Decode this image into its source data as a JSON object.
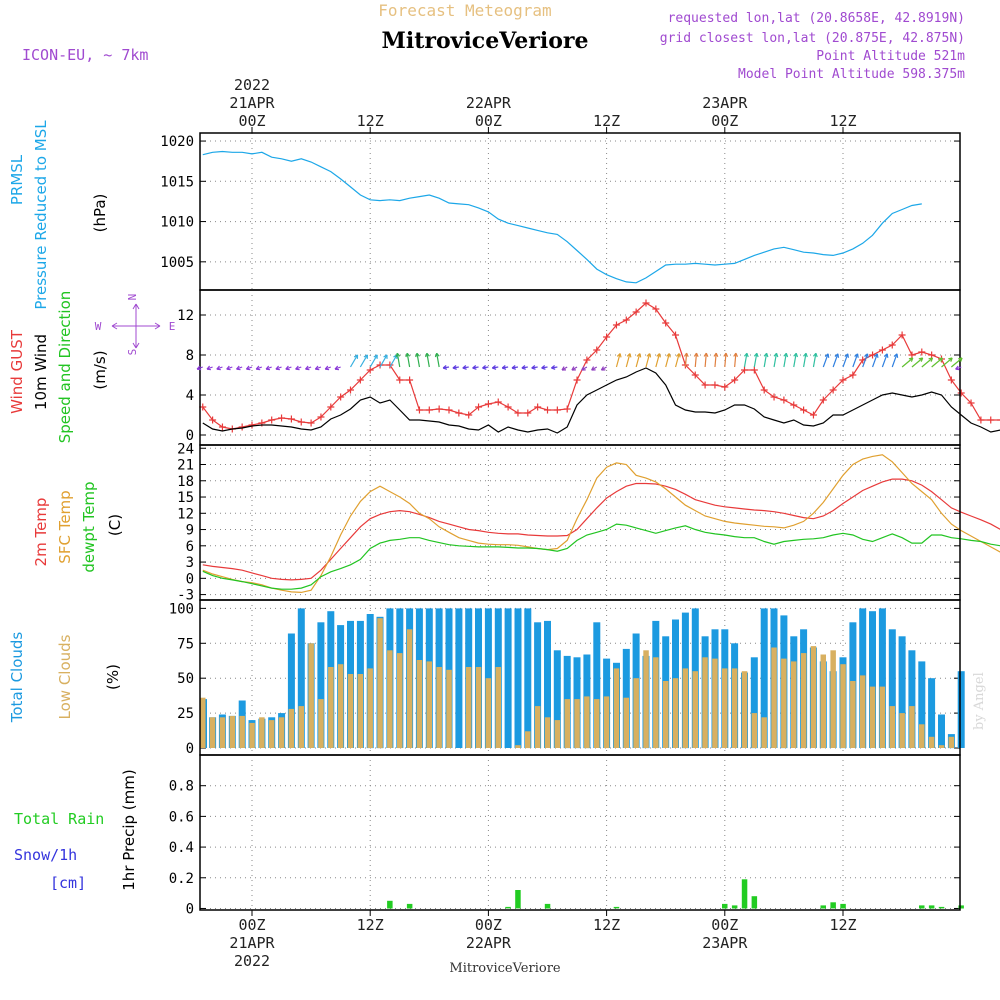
{
  "header": {
    "top_title": "Forecast Meteogram",
    "station": "MitroviceVeriore",
    "model": "ICON-EU, ~ 7km",
    "requested": "requested lon,lat (20.8658E, 42.8919N)",
    "closest": "grid closest lon,lat (20.875E, 42.875N)",
    "point_alt": "Point Altitude 521m",
    "model_alt": "Model Point Altitude 598.375m",
    "footer_station": "MitroviceVeriore",
    "credit": "by Angel"
  },
  "colors": {
    "pressure": "#1ca7e8",
    "gust": "#e83a3a",
    "wind": "#000000",
    "t2m": "#e83a3a",
    "sfc": "#e0a030",
    "dewpt": "#22c422",
    "total_clouds": "#1c9ae0",
    "low_clouds": "#d8b060",
    "rain": "#22cc22",
    "snow": "#3333dd",
    "purple": "#a04ad0",
    "tan": "#e6c080"
  },
  "time_axis": {
    "top_labels": [
      {
        "h": 0,
        "lines": [
          "2022",
          "21APR",
          "00Z"
        ]
      },
      {
        "h": 12,
        "lines": [
          "12Z"
        ]
      },
      {
        "h": 24,
        "lines": [
          "22APR",
          "00Z"
        ]
      },
      {
        "h": 36,
        "lines": [
          "12Z"
        ]
      },
      {
        "h": 48,
        "lines": [
          "23APR",
          "00Z"
        ]
      },
      {
        "h": 60,
        "lines": [
          "12Z"
        ]
      }
    ],
    "bottom_labels": [
      {
        "h": 0,
        "lines": [
          "00Z",
          "21APR",
          "2022"
        ]
      },
      {
        "h": 12,
        "lines": [
          "12Z"
        ]
      },
      {
        "h": 24,
        "lines": [
          "00Z",
          "22APR"
        ]
      },
      {
        "h": 36,
        "lines": [
          "12Z"
        ]
      },
      {
        "h": 48,
        "lines": [
          "00Z",
          "23APR"
        ]
      },
      {
        "h": 60,
        "lines": [
          "12Z"
        ]
      }
    ]
  },
  "chart_data": [
    {
      "type": "line",
      "panel": "pressure",
      "ylabel_lines": [
        "PRMSL",
        "Pressure Reduced to MSL"
      ],
      "unit": "(hPa)",
      "ylim": [
        1001.5,
        1021
      ],
      "yticks": [
        1005,
        1010,
        1015,
        1020
      ],
      "x_start": -5,
      "x_step": 1,
      "series": [
        {
          "name": "PRMSL",
          "color_key": "pressure",
          "values": [
            1018.3,
            1018.6,
            1018.7,
            1018.6,
            1018.6,
            1018.4,
            1018.6,
            1018.0,
            1017.8,
            1017.5,
            1017.8,
            1017.4,
            1016.8,
            1016.2,
            1015.3,
            1014.3,
            1013.3,
            1012.7,
            1012.6,
            1012.7,
            1012.6,
            1012.9,
            1013.1,
            1013.3,
            1012.9,
            1012.3,
            1012.2,
            1012.1,
            1011.7,
            1011.2,
            1010.3,
            1009.8,
            1009.5,
            1009.2,
            1008.9,
            1008.6,
            1008.4,
            1007.5,
            1006.4,
            1005.3,
            1004.1,
            1003.4,
            1002.9,
            1002.5,
            1002.4,
            1003.0,
            1003.8,
            1004.6,
            1004.7,
            1004.7,
            1004.8,
            1004.7,
            1004.6,
            1004.7,
            1004.8,
            1005.3,
            1005.8,
            1006.2,
            1006.6,
            1006.8,
            1006.5,
            1006.2,
            1006.1,
            1005.9,
            1005.8,
            1006.1,
            1006.6,
            1007.3,
            1008.3,
            1009.8,
            1011.0,
            1011.5,
            1012.0,
            1012.2
          ]
        }
      ]
    },
    {
      "type": "line",
      "panel": "wind",
      "ylabel_lines": [
        "Wind GUST",
        "10m Wind",
        "Speed and Direction"
      ],
      "unit": "(m/s)",
      "compass": {
        "n": "N",
        "s": "S",
        "w": "W",
        "e": "E"
      },
      "ylim": [
        -1,
        14.5
      ],
      "yticks": [
        0,
        4,
        8,
        12
      ],
      "x_start": -5,
      "x_step": 1,
      "series": [
        {
          "name": "Wind GUST",
          "color_key": "gust",
          "marker": "plus",
          "values": [
            2.8,
            1.5,
            0.8,
            0.6,
            0.8,
            1.0,
            1.2,
            1.5,
            1.7,
            1.6,
            1.3,
            1.2,
            1.8,
            2.8,
            3.8,
            4.5,
            5.5,
            6.5,
            7.0,
            7.0,
            5.5,
            5.5,
            2.5,
            2.5,
            2.6,
            2.5,
            2.2,
            2.0,
            2.8,
            3.1,
            3.3,
            2.8,
            2.2,
            2.2,
            2.8,
            2.5,
            2.5,
            2.6,
            5.5,
            7.5,
            8.5,
            9.8,
            11.0,
            11.5,
            12.3,
            13.2,
            12.6,
            11.2,
            10.0,
            7.0,
            6.0,
            5.0,
            5.0,
            4.8,
            5.5,
            6.5,
            6.5,
            4.5,
            3.8,
            3.5,
            3.0,
            2.5,
            2.0,
            3.5,
            4.5,
            5.5,
            6.0,
            7.5,
            8.0,
            8.5,
            9.0,
            10.0,
            8.0,
            8.3,
            8.0,
            7.6,
            5.5,
            4.2,
            3.2,
            1.5,
            1.5,
            1.5,
            1.3
          ]
        },
        {
          "name": "10m Wind",
          "color_key": "wind",
          "values": [
            1.2,
            0.6,
            0.4,
            0.6,
            0.7,
            0.9,
            1.0,
            1.0,
            0.9,
            0.8,
            0.6,
            0.5,
            0.8,
            1.6,
            2.0,
            2.6,
            3.5,
            3.8,
            3.2,
            3.5,
            2.5,
            1.5,
            1.5,
            1.4,
            1.3,
            1.0,
            0.9,
            0.6,
            0.5,
            1.0,
            0.3,
            0.8,
            0.5,
            0.3,
            0.5,
            0.6,
            0.2,
            0.8,
            3.0,
            4.0,
            4.5,
            5.0,
            5.5,
            5.8,
            6.3,
            6.7,
            6.2,
            5.0,
            3.0,
            2.5,
            2.3,
            2.3,
            2.2,
            2.5,
            3.0,
            3.0,
            2.6,
            1.8,
            1.5,
            1.2,
            1.5,
            1.0,
            0.9,
            1.2,
            2.0,
            2.0,
            2.5,
            3.0,
            3.5,
            4.0,
            4.2,
            4.0,
            3.8,
            4.0,
            4.3,
            4.0,
            2.8,
            2.0,
            1.2,
            0.8,
            0.3,
            0.5,
            0.3
          ]
        }
      ]
    },
    {
      "type": "line",
      "panel": "temperature",
      "ylabel_lines": [
        "2m Temp",
        "SFC Temp",
        "dewpt Temp"
      ],
      "unit": "(C)",
      "ylim": [
        -4,
        24.6
      ],
      "yticks": [
        -3,
        0,
        3,
        6,
        9,
        12,
        15,
        18,
        21,
        24
      ],
      "x_start": -5,
      "x_step": 1,
      "series": [
        {
          "name": "2m Temp",
          "color_key": "t2m",
          "values": [
            2.5,
            2.2,
            2.0,
            1.8,
            1.5,
            1.0,
            0.5,
            0.0,
            -0.2,
            -0.3,
            -0.2,
            0.0,
            1.5,
            3.5,
            5.5,
            7.5,
            9.5,
            11.0,
            11.8,
            12.3,
            12.5,
            12.3,
            11.8,
            11.2,
            10.5,
            10.0,
            9.5,
            9.0,
            8.8,
            8.5,
            8.3,
            8.2,
            8.2,
            8.0,
            7.9,
            7.8,
            7.8,
            7.9,
            9.0,
            11.0,
            13.0,
            14.8,
            16.0,
            17.0,
            17.5,
            17.5,
            17.4,
            17.0,
            16.4,
            15.5,
            14.5,
            14.0,
            13.5,
            13.2,
            13.0,
            12.8,
            12.6,
            12.5,
            12.3,
            12.0,
            11.6,
            11.2,
            11.0,
            11.5,
            12.5,
            13.8,
            15.0,
            16.2,
            17.0,
            17.8,
            18.3,
            18.3,
            18.0,
            17.2,
            16.0,
            14.5,
            13.0,
            12.2,
            11.5,
            10.8,
            10.0,
            9.0,
            8.0
          ]
        },
        {
          "name": "SFC Temp",
          "color_key": "sfc",
          "values": [
            1.5,
            0.8,
            0.3,
            -0.2,
            -0.6,
            -0.8,
            -1.2,
            -1.8,
            -2.2,
            -2.5,
            -2.6,
            -2.2,
            0.5,
            4.0,
            8.0,
            11.5,
            14.2,
            16.0,
            17.0,
            16.0,
            15.0,
            13.8,
            12.0,
            11.0,
            9.5,
            8.5,
            7.5,
            7.0,
            6.5,
            6.3,
            6.2,
            6.2,
            6.1,
            5.8,
            5.5,
            5.3,
            5.5,
            7.0,
            11.0,
            14.5,
            18.5,
            20.5,
            21.3,
            21.0,
            19.0,
            18.5,
            17.8,
            16.5,
            15.0,
            13.5,
            12.5,
            11.5,
            11.0,
            10.5,
            10.2,
            10.0,
            9.8,
            9.6,
            9.5,
            9.3,
            9.8,
            10.5,
            12.0,
            14.0,
            16.5,
            19.0,
            21.0,
            22.0,
            22.5,
            22.8,
            21.5,
            19.5,
            17.5,
            16.0,
            14.5,
            12.0,
            10.0,
            8.8,
            7.8,
            6.8,
            5.8,
            4.8,
            4.0
          ]
        },
        {
          "name": "dewpt Temp",
          "color_key": "dewpt",
          "values": [
            1.3,
            0.5,
            0.0,
            -0.3,
            -0.6,
            -1.0,
            -1.4,
            -1.8,
            -2.0,
            -2.0,
            -1.8,
            -1.2,
            0.3,
            1.2,
            1.8,
            2.5,
            3.5,
            5.5,
            6.5,
            7.0,
            7.2,
            7.5,
            7.5,
            7.0,
            6.6,
            6.2,
            6.0,
            5.9,
            5.8,
            5.8,
            5.8,
            5.7,
            5.6,
            5.6,
            5.5,
            5.3,
            5.0,
            5.5,
            7.0,
            8.0,
            8.5,
            9.0,
            10.0,
            9.8,
            9.3,
            8.8,
            8.3,
            8.8,
            9.3,
            9.7,
            9.0,
            8.5,
            8.2,
            8.0,
            7.7,
            7.5,
            7.5,
            6.8,
            6.3,
            6.8,
            7.0,
            7.2,
            7.3,
            7.5,
            8.0,
            8.3,
            8.0,
            7.2,
            6.8,
            7.5,
            8.2,
            7.5,
            6.5,
            6.5,
            8.0,
            8.0,
            7.5,
            7.3,
            7.0,
            6.8,
            6.3,
            6.0,
            5.8
          ]
        }
      ]
    },
    {
      "type": "bar",
      "panel": "clouds",
      "ylabel_lines": [
        "Total Clouds",
        "Low Clouds"
      ],
      "unit": "(%)",
      "ylim": [
        -5,
        106
      ],
      "yticks": [
        0,
        25,
        50,
        75,
        100
      ],
      "x_start": -5,
      "x_step": 1,
      "series": [
        {
          "name": "Total Clouds",
          "color_key": "total_clouds",
          "values": [
            35,
            22,
            24,
            23,
            34,
            20,
            21,
            22,
            25,
            82,
            100,
            75,
            90,
            98,
            88,
            91,
            91,
            96,
            94,
            100,
            100,
            100,
            100,
            100,
            100,
            100,
            100,
            100,
            100,
            100,
            100,
            100,
            100,
            100,
            90,
            91,
            70,
            66,
            65,
            67,
            90,
            64,
            61,
            71,
            82,
            66,
            91,
            80,
            92,
            97,
            100,
            80,
            85,
            85,
            75,
            54,
            65,
            100,
            100,
            95,
            80,
            85,
            72,
            62,
            55,
            65,
            90,
            100,
            98,
            100,
            85,
            80,
            70,
            62,
            50,
            24,
            10,
            55
          ]
        },
        {
          "name": "Low Clouds",
          "color_key": "low_clouds",
          "values": [
            36,
            22,
            22,
            23,
            23,
            18,
            22,
            20,
            22,
            28,
            30,
            75,
            35,
            58,
            60,
            53,
            53,
            57,
            93,
            70,
            68,
            85,
            63,
            62,
            58,
            56,
            0,
            58,
            58,
            50,
            58,
            0,
            2,
            12,
            30,
            22,
            20,
            35,
            35,
            37,
            35,
            37,
            57,
            36,
            50,
            70,
            65,
            48,
            50,
            57,
            55,
            65,
            64,
            57,
            57,
            55,
            25,
            22,
            72,
            64,
            62,
            68,
            73,
            67,
            70,
            60,
            48,
            52,
            44,
            44,
            30,
            25,
            30,
            17,
            8,
            2,
            8
          ]
        }
      ]
    },
    {
      "type": "bar",
      "panel": "precip",
      "ylabel": "1hr Precip (mm)",
      "legend": {
        "rain": "Total Rain",
        "snow": "Snow/1h",
        "snow_unit": "[cm]"
      },
      "ylim": [
        -0.01,
        1.0
      ],
      "yticks": [
        0,
        0.2,
        0.4,
        0.6,
        0.8
      ],
      "x_start": -5,
      "x_step": 1,
      "series": [
        {
          "name": "Total Rain",
          "color_key": "rain",
          "values": [
            0,
            0,
            0,
            0,
            0,
            0,
            0,
            0,
            0,
            0,
            0,
            0,
            0,
            0,
            0,
            0,
            0,
            0,
            0,
            0.05,
            0,
            0.03,
            0,
            0,
            0,
            0,
            0,
            0,
            0,
            0,
            0,
            0.01,
            0.12,
            0,
            0,
            0.03,
            0,
            0,
            0,
            0,
            0,
            0,
            0.01,
            0,
            0,
            0,
            0,
            0,
            0,
            0,
            0,
            0,
            0,
            0.03,
            0.02,
            0.19,
            0.08,
            0,
            0,
            0,
            0,
            0,
            0,
            0.02,
            0.04,
            0.03,
            0,
            0,
            0,
            0,
            0,
            0,
            0,
            0.02,
            0.02,
            0.01,
            0,
            0.02,
            0,
            0,
            0,
            0,
            0
          ]
        }
      ]
    }
  ]
}
